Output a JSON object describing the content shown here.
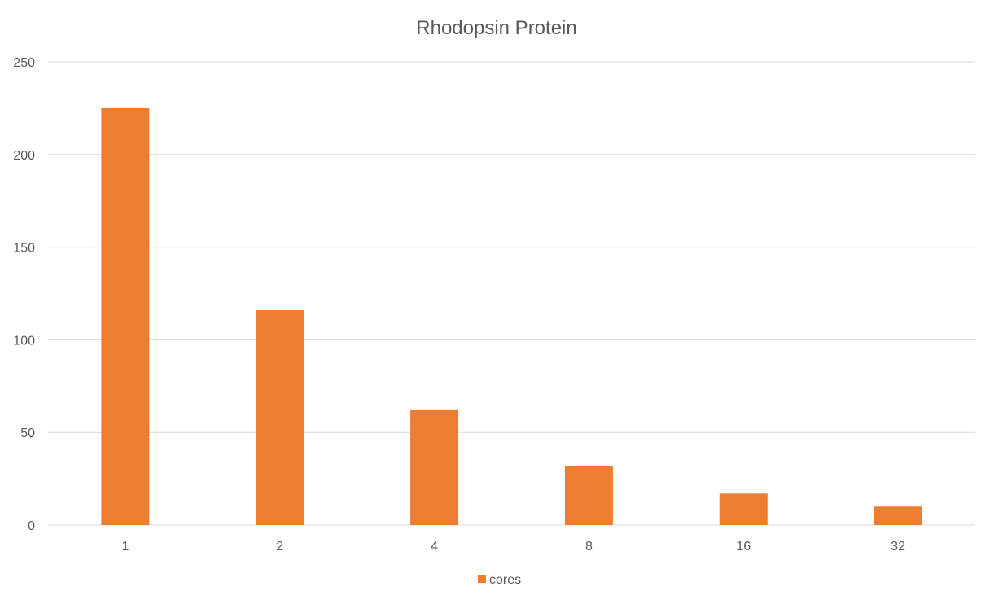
{
  "chart_data": {
    "type": "bar",
    "title": "Rhodopsin Protein",
    "xlabel": "",
    "ylabel": "",
    "categories": [
      "1",
      "2",
      "4",
      "8",
      "16",
      "32"
    ],
    "series": [
      {
        "name": "cores",
        "color": "#ED7D31",
        "values": [
          225,
          116,
          62,
          32,
          17,
          10
        ]
      }
    ],
    "ylim": [
      0,
      250
    ],
    "yticks": [
      "0",
      "50",
      "100",
      "150",
      "200",
      "250"
    ],
    "grid": true,
    "legend_position": "bottom"
  }
}
